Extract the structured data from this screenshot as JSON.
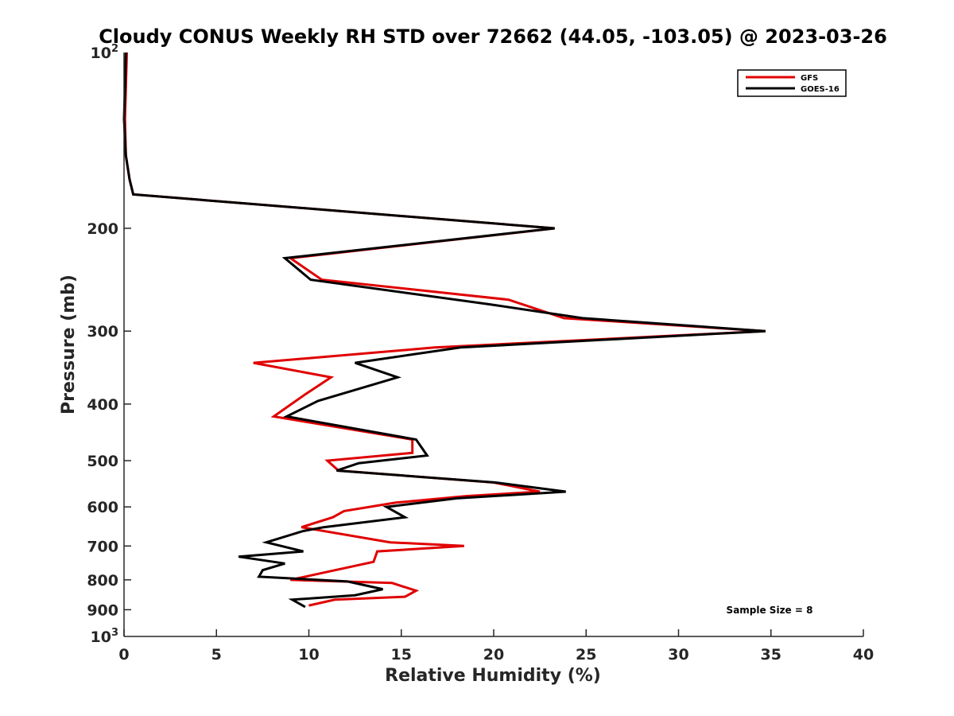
{
  "chart_data": {
    "type": "line",
    "title": "Cloudy CONUS Weekly RH STD over 72662 (44.05, -103.05) @ 2023-03-26",
    "xlabel": "Relative Humidity (%)",
    "ylabel": "Pressure (mb)",
    "xlim": [
      0,
      40
    ],
    "ylim": [
      100,
      1000
    ],
    "y_scale": "log",
    "y_reversed": true,
    "grid": false,
    "legend_position": "top-right",
    "x_ticks": [
      {
        "value": 0,
        "label": "0"
      },
      {
        "value": 5,
        "label": "5"
      },
      {
        "value": 10,
        "label": "10"
      },
      {
        "value": 15,
        "label": "15"
      },
      {
        "value": 20,
        "label": "20"
      },
      {
        "value": 25,
        "label": "25"
      },
      {
        "value": 30,
        "label": "30"
      },
      {
        "value": 35,
        "label": "35"
      },
      {
        "value": 40,
        "label": "40"
      }
    ],
    "y_ticks": [
      {
        "value": 100,
        "base": "10",
        "exp": "2"
      },
      {
        "value": 200,
        "label": "200"
      },
      {
        "value": 300,
        "label": "300"
      },
      {
        "value": 400,
        "label": "400"
      },
      {
        "value": 500,
        "label": "500"
      },
      {
        "value": 600,
        "label": "600"
      },
      {
        "value": 700,
        "label": "700"
      },
      {
        "value": 800,
        "label": "800"
      },
      {
        "value": 900,
        "label": "900"
      },
      {
        "value": 1000,
        "base": "10",
        "exp": "3"
      }
    ],
    "annotation": "Sample Size = 8",
    "series": [
      {
        "name": "GFS",
        "color": "#e00000",
        "points": [
          [
            0.15,
            100
          ],
          [
            0.1,
            115
          ],
          [
            0.05,
            130
          ],
          [
            0.1,
            150
          ],
          [
            0.3,
            165
          ],
          [
            0.5,
            175
          ],
          [
            23.3,
            200
          ],
          [
            9.0,
            225
          ],
          [
            10.7,
            245
          ],
          [
            20.8,
            265
          ],
          [
            23.8,
            285
          ],
          [
            34.7,
            300
          ],
          [
            16.8,
            320
          ],
          [
            7.0,
            340
          ],
          [
            11.2,
            360
          ],
          [
            9.8,
            385
          ],
          [
            8.1,
            420
          ],
          [
            15.6,
            460
          ],
          [
            15.6,
            485
          ],
          [
            11.0,
            500
          ],
          [
            11.6,
            520
          ],
          [
            20.0,
            545
          ],
          [
            22.5,
            565
          ],
          [
            18.5,
            575
          ],
          [
            14.7,
            590
          ],
          [
            11.9,
            610
          ],
          [
            11.3,
            625
          ],
          [
            9.6,
            650
          ],
          [
            14.4,
            690
          ],
          [
            18.4,
            700
          ],
          [
            13.7,
            715
          ],
          [
            13.5,
            745
          ],
          [
            10.6,
            780
          ],
          [
            9.0,
            800
          ],
          [
            14.5,
            810
          ],
          [
            15.8,
            835
          ],
          [
            15.2,
            855
          ],
          [
            11.4,
            865
          ],
          [
            10.0,
            885
          ]
        ]
      },
      {
        "name": "GOES-16",
        "color": "#000000",
        "points": [
          [
            0.1,
            100
          ],
          [
            0.05,
            115
          ],
          [
            0.0,
            130
          ],
          [
            0.1,
            150
          ],
          [
            0.3,
            165
          ],
          [
            0.5,
            175
          ],
          [
            23.3,
            200
          ],
          [
            8.7,
            225
          ],
          [
            10.1,
            245
          ],
          [
            19.8,
            270
          ],
          [
            24.8,
            285
          ],
          [
            34.7,
            300
          ],
          [
            18.2,
            320
          ],
          [
            12.5,
            340
          ],
          [
            14.8,
            360
          ],
          [
            10.5,
            395
          ],
          [
            8.8,
            420
          ],
          [
            15.8,
            460
          ],
          [
            16.4,
            490
          ],
          [
            12.7,
            505
          ],
          [
            11.5,
            520
          ],
          [
            20.1,
            545
          ],
          [
            23.9,
            565
          ],
          [
            18.0,
            580
          ],
          [
            14.2,
            600
          ],
          [
            15.2,
            625
          ],
          [
            10.8,
            650
          ],
          [
            9.7,
            660
          ],
          [
            7.7,
            690
          ],
          [
            9.7,
            715
          ],
          [
            6.2,
            730
          ],
          [
            8.7,
            750
          ],
          [
            7.5,
            770
          ],
          [
            7.3,
            790
          ],
          [
            12.1,
            805
          ],
          [
            14.0,
            830
          ],
          [
            12.5,
            850
          ],
          [
            9.1,
            865
          ],
          [
            9.8,
            890
          ]
        ]
      }
    ]
  }
}
